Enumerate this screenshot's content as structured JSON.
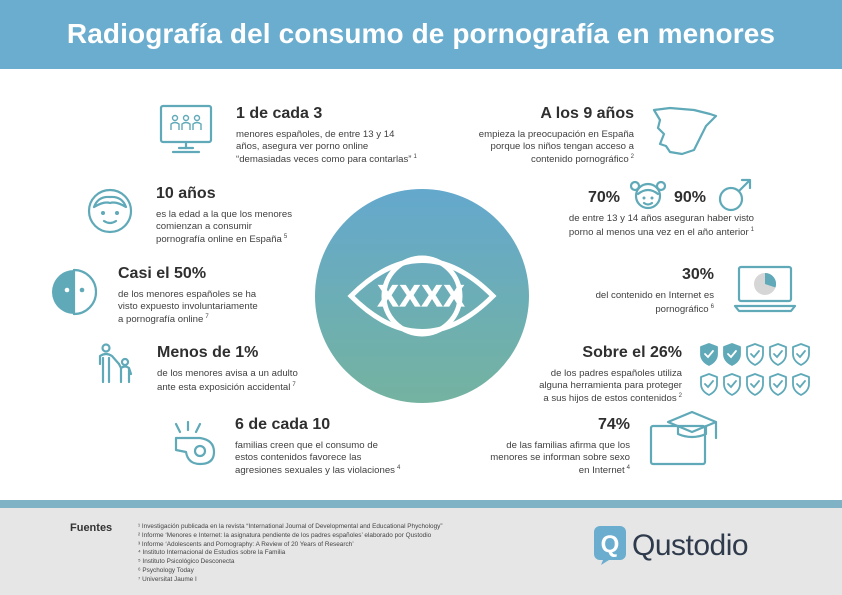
{
  "title": "Radiografía del consumo de pornografía en menores",
  "left": [
    {
      "big": "1 de cada 3",
      "lines": [
        "menores españoles, de entre 13 y 14",
        "años, asegura ver porno online",
        "“demasiadas veces como para contarlas”"
      ],
      "ref": "1",
      "icon": "monitor-people-icon"
    },
    {
      "big": "10 años",
      "lines": [
        "es la edad a la que los menores",
        "comienzan a consumir",
        "pornografía online en España"
      ],
      "ref": "5",
      "icon": "child-face-icon"
    },
    {
      "big": "Casi el 50%",
      "lines": [
        "de los menores españoles se ha",
        "visto expuesto involuntariamente",
        "a pornografía online"
      ],
      "ref": "7",
      "icon": "half-face-icon"
    },
    {
      "big": "Menos de 1%",
      "lines": [
        "de los menores avisa a un adulto",
        "ante esta exposición accidental"
      ],
      "ref": "7",
      "icon": "adult-child-icon"
    },
    {
      "big": "6 de cada 10",
      "lines": [
        "familias creen que el consumo de",
        "estos contenidos favorece las",
        "agresiones sexuales y las violaciones"
      ],
      "ref": "4",
      "icon": "whistle-icon"
    }
  ],
  "right": [
    {
      "big": "A los 9 años",
      "lines": [
        "empieza la preocupación en España",
        "porque los niños tengan acceso a",
        "contenido pornográfico"
      ],
      "ref": "2",
      "icon": "spain-map-icon"
    },
    {
      "pct_girls": "70%",
      "pct_boys": "90%",
      "lines": [
        "de entre 13 y 14 años aseguran haber visto",
        "porno al menos una vez en el año anterior"
      ],
      "ref": "1",
      "icon_girl": "girl-face-icon",
      "icon_boy": "male-symbol-icon"
    },
    {
      "big": "30%",
      "lines": [
        "del contenido en Internet es",
        "pornográfico"
      ],
      "ref": "6",
      "icon": "laptop-pie-icon"
    },
    {
      "big": "Sobre el 26%",
      "lines": [
        "de los padres españoles utiliza",
        "alguna herramienta para proteger",
        "a sus hijos de estos contenidos"
      ],
      "ref": "2",
      "icon": "shield-check-icon"
    },
    {
      "big": "74%",
      "lines": [
        "de las familias afirma que los",
        "menores se informan sobre sexo",
        "en Internet"
      ],
      "ref": "4",
      "icon": "graduation-screen-icon"
    }
  ],
  "footer": {
    "title": "Fuentes",
    "sources": [
      "¹ Investigación publicada en la revista “International Journal of Developmental and Educational Phychology”",
      "² Informe ‘Menores e Internet: la asignatura pendiente de los padres españoles’ elaborado por Qustodio",
      "³ Informe ‘Adolescents and Pornography: A Review of 20 Years of Research’",
      "⁴ Instituto Internacional de Estudios sobre la Familia",
      "⁵ Instituto Psicológico Desconecta",
      "⁶ Psychology Today",
      "⁷ Universitat Jaume I"
    ],
    "brand": "Qustodio",
    "brand_letter": "Q"
  },
  "center_icon": "censored-eye-icon",
  "center_text": "XXXX",
  "colors": {
    "header": "#6aadcf",
    "accent": "#5fa9b8",
    "footer": "#e6e6e6"
  }
}
